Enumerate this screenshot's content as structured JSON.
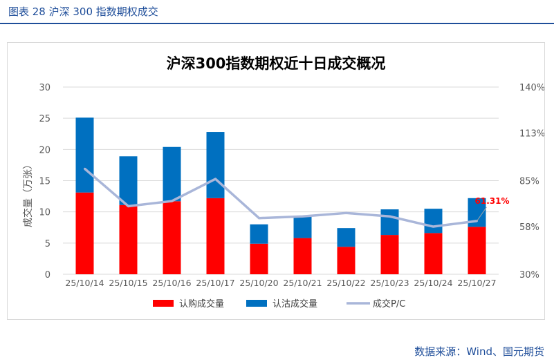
{
  "figure_caption": "图表 28  沪深 300 指数期权成交",
  "source_note": "数据来源：Wind、国元期货",
  "colors": {
    "call": "#ff0000",
    "put": "#0070c0",
    "pc_line": "#a9b6d9",
    "caption": "#1f4e9a",
    "label": "#ff0000"
  },
  "chart_data": {
    "type": "bar",
    "stacked": true,
    "title": "沪深300指数期权近十日成交概况",
    "ylabel": "成交量（万张）",
    "ylim": [
      0,
      30
    ],
    "yticks": [
      "0",
      "5",
      "10",
      "15",
      "20",
      "25",
      "30"
    ],
    "y2lim": [
      0.3,
      1.4
    ],
    "y2ticks": [
      "30%",
      "58%",
      "85%",
      "113%",
      "140%"
    ],
    "categories": [
      "25/10/14",
      "25/10/15",
      "25/10/16",
      "25/10/17",
      "25/10/20",
      "25/10/21",
      "25/10/22",
      "25/10/23",
      "25/10/24",
      "25/10/27"
    ],
    "series": [
      {
        "name": "认购成交量",
        "type": "bar",
        "axis": "left",
        "values": [
          13.1,
          11.1,
          11.7,
          12.2,
          4.9,
          5.8,
          4.4,
          6.3,
          6.6,
          7.6
        ]
      },
      {
        "name": "认沽成交量",
        "type": "bar",
        "axis": "left",
        "values": [
          12.0,
          7.8,
          8.7,
          10.6,
          3.1,
          3.5,
          3.0,
          4.1,
          3.9,
          4.6
        ]
      },
      {
        "name": "成交P/C",
        "type": "line",
        "axis": "right",
        "values": [
          0.92,
          0.7,
          0.73,
          0.86,
          0.63,
          0.64,
          0.66,
          0.64,
          0.58,
          0.6131
        ]
      }
    ],
    "annotation": {
      "series": "成交P/C",
      "index": 9,
      "text": "61.31%"
    },
    "legend_position": "bottom"
  }
}
